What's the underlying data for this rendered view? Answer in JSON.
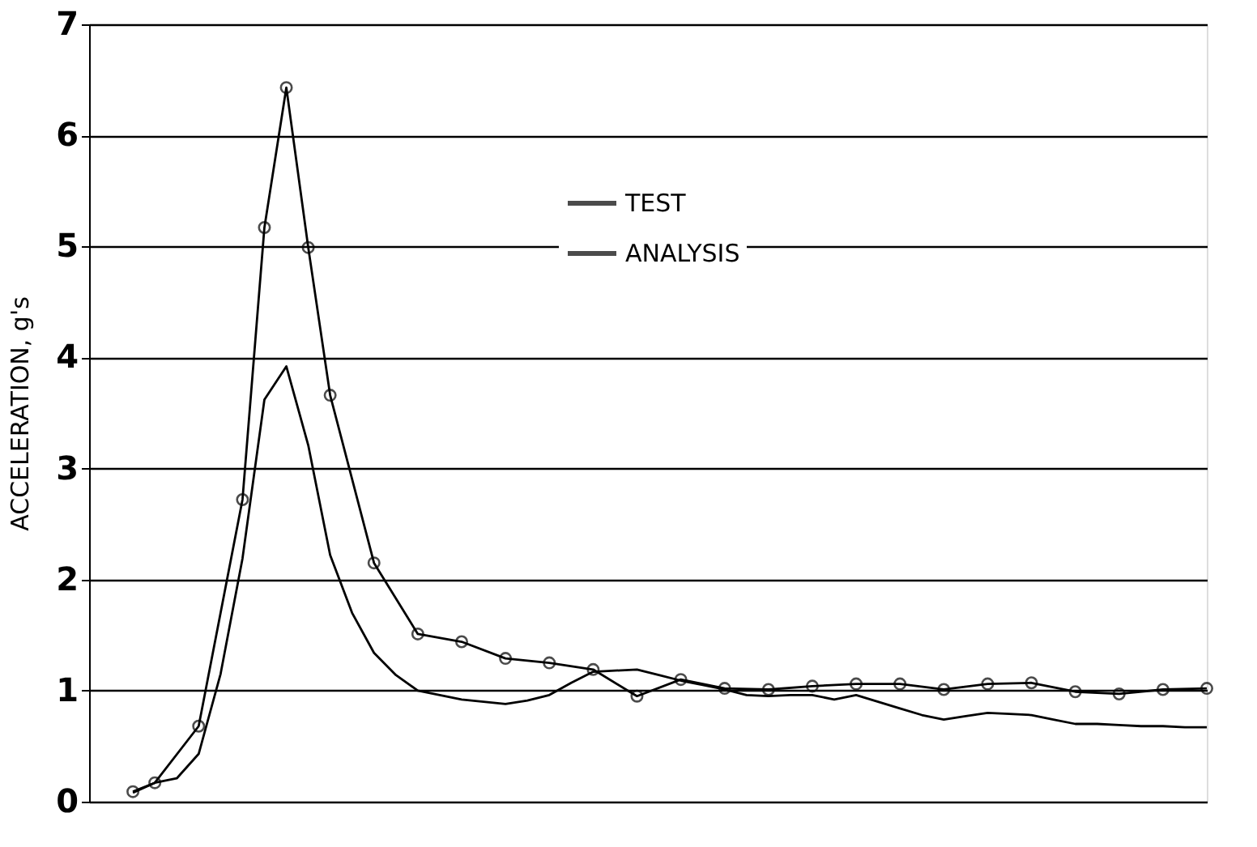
{
  "chart_data": {
    "type": "line",
    "ylabel": "ACCELERATION, g's",
    "categories": [
      null,
      null,
      null,
      null,
      null,
      null,
      null,
      null,
      null,
      null,
      null,
      null,
      null,
      null,
      null,
      null,
      null,
      null,
      null,
      null,
      null,
      null,
      null,
      null,
      null,
      null,
      null,
      null,
      null,
      null,
      null,
      null,
      null,
      null,
      null,
      null,
      null,
      null,
      null,
      null,
      null,
      null,
      null,
      null,
      null,
      null,
      null,
      null,
      null,
      null,
      null,
      null
    ],
    "ylim": [
      0,
      7
    ],
    "yticks": [
      0,
      1,
      2,
      3,
      4,
      5,
      6,
      7
    ],
    "grid": "y",
    "legend": "top right",
    "series": [
      {
        "name": "TEST",
        "color": "#000000",
        "marker": "none",
        "values": [
          null,
          null,
          0.08,
          0.17,
          0.21,
          0.43,
          1.15,
          2.19,
          3.62,
          3.92,
          3.21,
          2.22,
          1.7,
          1.34,
          1.14,
          1.0,
          0.96,
          0.92,
          0.9,
          0.88,
          0.91,
          0.96,
          1.07,
          1.17,
          1.18,
          1.19,
          1.14,
          1.09,
          1.05,
          1.01,
          0.96,
          0.95,
          0.96,
          0.96,
          0.92,
          0.96,
          0.9,
          0.84,
          0.78,
          0.74,
          0.77,
          0.8,
          0.79,
          0.78,
          0.74,
          0.7,
          0.7,
          0.69,
          0.68,
          0.68,
          0.67,
          0.67
        ]
      },
      {
        "name": "ANALYSIS",
        "color": "#000000",
        "marker": "circle",
        "values": [
          null,
          null,
          0.09,
          0.17,
          null,
          0.68,
          null,
          2.72,
          5.17,
          6.43,
          4.99,
          3.66,
          null,
          2.15,
          null,
          1.51,
          null,
          1.44,
          null,
          1.29,
          null,
          1.25,
          null,
          1.19,
          null,
          0.95,
          null,
          1.1,
          null,
          1.02,
          null,
          1.01,
          null,
          1.04,
          null,
          1.06,
          null,
          1.06,
          null,
          1.01,
          null,
          1.06,
          null,
          1.07,
          null,
          0.99,
          null,
          0.97,
          null,
          1.01,
          null,
          1.02
        ]
      }
    ]
  }
}
